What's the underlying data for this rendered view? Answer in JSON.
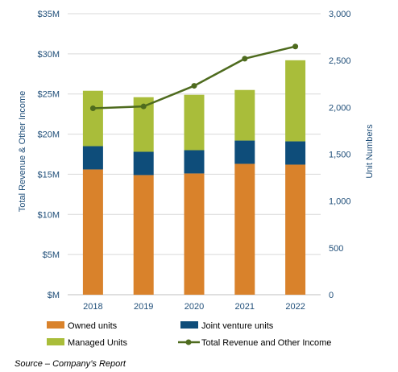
{
  "chart_data": {
    "type": "bar",
    "stacked": true,
    "categories": [
      "2018",
      "2019",
      "2020",
      "2021",
      "2022"
    ],
    "series": [
      {
        "name": "Owned units",
        "color": "#D9822B",
        "axis": "left",
        "values": [
          15.6,
          14.9,
          15.1,
          16.3,
          16.2
        ]
      },
      {
        "name": "Joint venture units",
        "color": "#0E4D7A",
        "axis": "left",
        "values": [
          2.9,
          2.9,
          2.9,
          2.9,
          2.9
        ]
      },
      {
        "name": "Managed Units",
        "color": "#A9BD3A",
        "axis": "left",
        "values": [
          6.9,
          6.8,
          6.9,
          6.3,
          10.1
        ]
      }
    ],
    "line_series": {
      "name": "Total Revenue and Other Income",
      "color": "#4E6B1E",
      "axis": "right",
      "values": [
        1990,
        2010,
        2230,
        2520,
        2650
      ]
    },
    "ylabel": "Total Revenue & Other Income",
    "y2label": "Unit Numbers",
    "ylim": [
      0,
      35
    ],
    "y2lim": [
      0,
      3000
    ],
    "y_ticks": [
      "$M",
      "$5M",
      "$10M",
      "$15M",
      "$20M",
      "$25M",
      "$30M",
      "$35M"
    ],
    "y2_ticks": [
      "0",
      "500",
      "1,000",
      "1,500",
      "2,000",
      "2,500",
      "3,000"
    ],
    "grid": true,
    "legend_position": "bottom",
    "source": "Source – Company’s Report",
    "colors": {
      "axis_text": "#1F4E79",
      "grid": "#D9D9D9"
    }
  }
}
